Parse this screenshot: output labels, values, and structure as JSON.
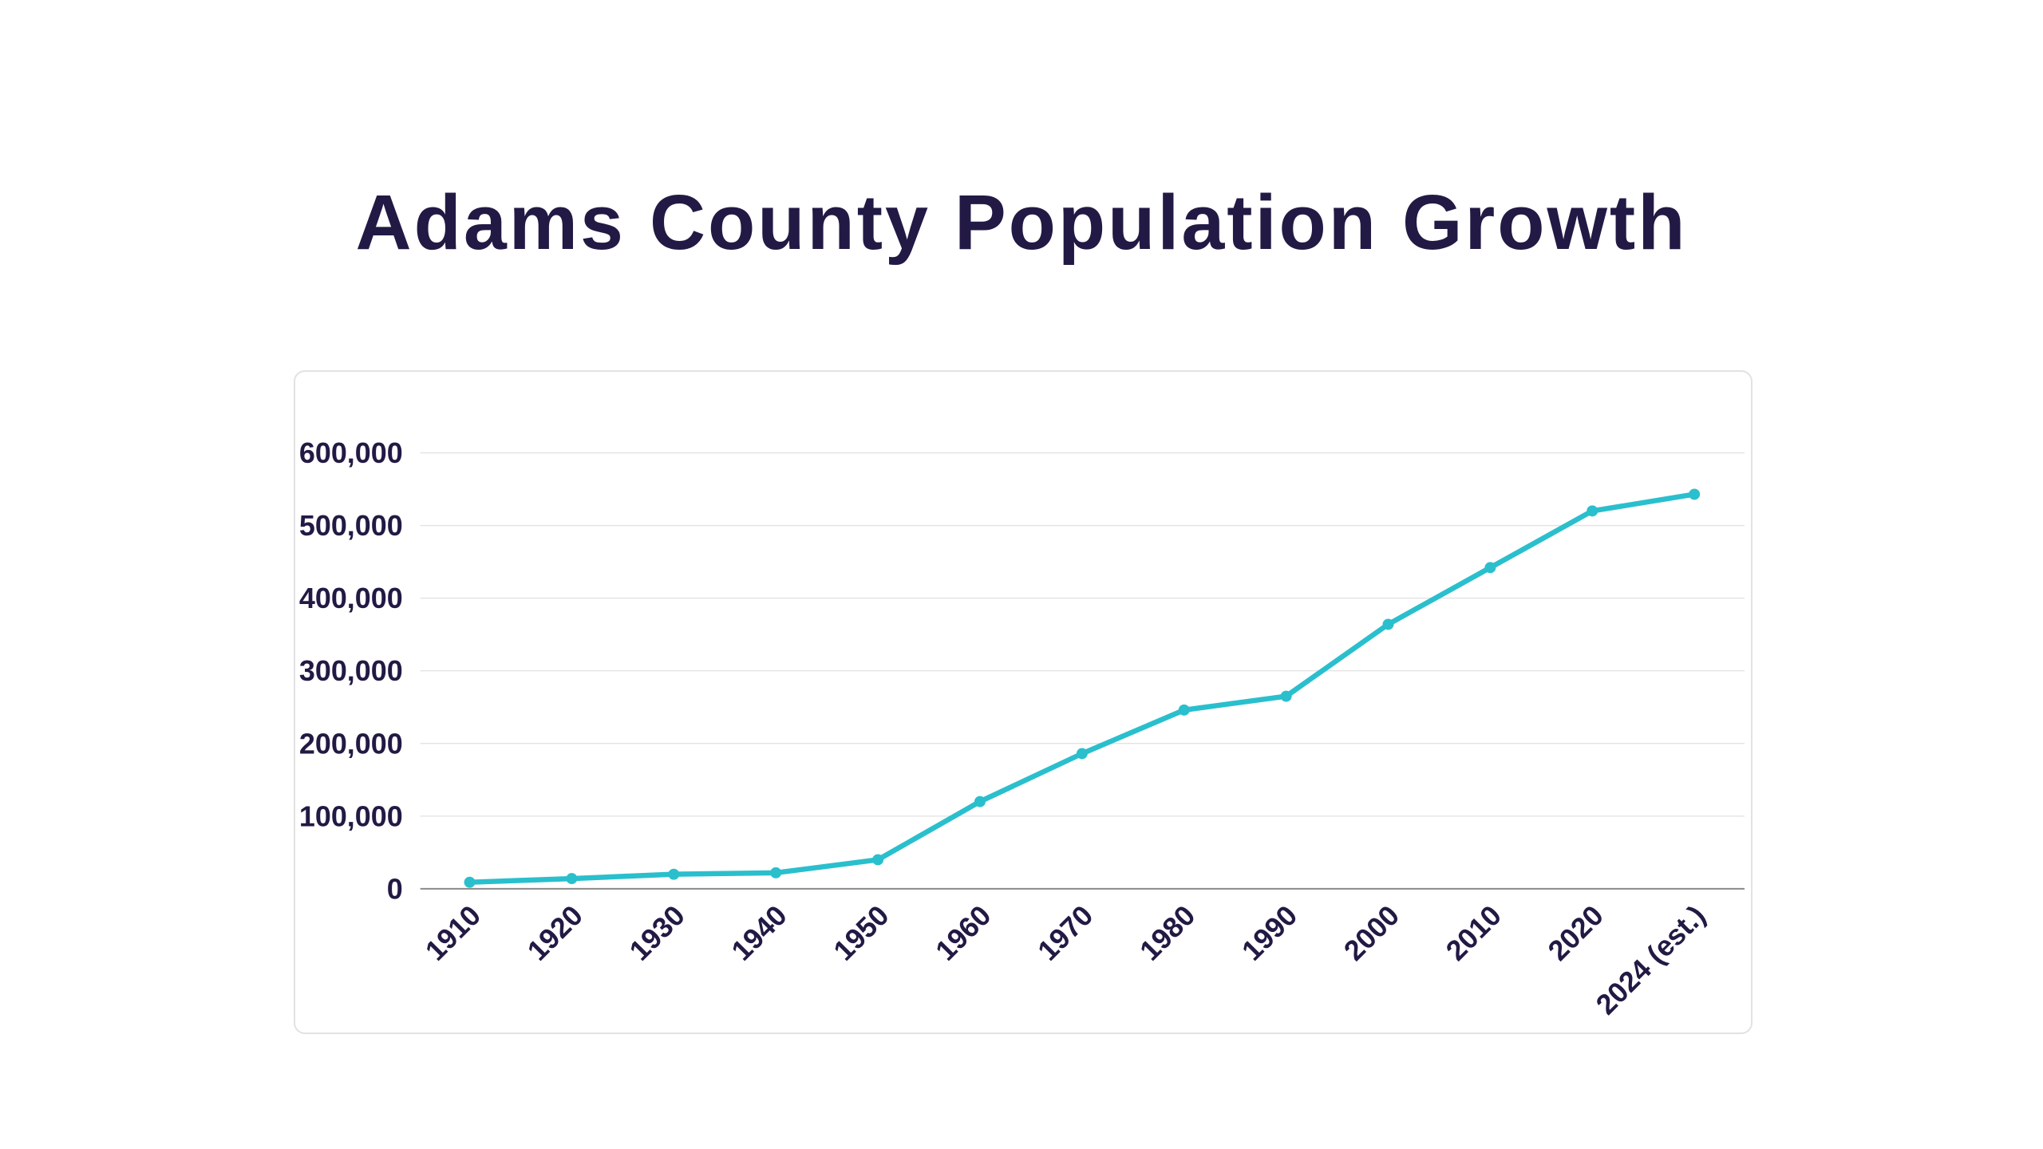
{
  "page": {
    "background_color": "#ffffff",
    "card_border_color": "#e2e2e4"
  },
  "title": "Adams County Population Growth",
  "chart_data": {
    "type": "line",
    "title": "Adams County Population Growth",
    "categories": [
      "1910",
      "1920",
      "1930",
      "1940",
      "1950",
      "1960",
      "1970",
      "1980",
      "1990",
      "2000",
      "2010",
      "2020",
      "2024 (est.)"
    ],
    "values": [
      9000,
      14000,
      20000,
      22000,
      40000,
      120000,
      186000,
      246000,
      265000,
      364000,
      442000,
      520000,
      543000
    ],
    "series_name": "Population",
    "xlabel": "",
    "ylabel": "",
    "ylim": [
      0,
      600000
    ],
    "y_ticks": [
      0,
      100000,
      200000,
      300000,
      400000,
      500000,
      600000
    ],
    "y_tick_labels": [
      "0",
      "100,000",
      "200,000",
      "300,000",
      "400,000",
      "500,000",
      "600,000"
    ],
    "x_label_rotation": -45,
    "grid": "horizontal",
    "legend": "none",
    "colors": {
      "line": "#2abfcd",
      "point": "#2abfcd",
      "grid": "#e4e4e4",
      "axis": "#8a8a8a",
      "text": "#221a44"
    }
  }
}
